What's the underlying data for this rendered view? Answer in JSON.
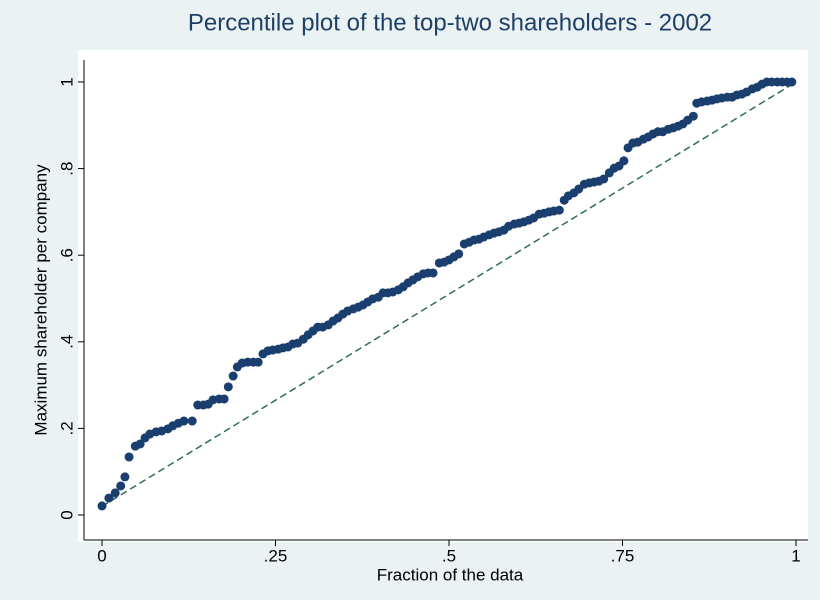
{
  "chart_data": {
    "type": "scatter",
    "title": "Percentile plot of the top-two shareholders - 2002",
    "x_label": "Fraction of the data",
    "y_label": "Maximum shareholder per company",
    "color": "#1a3f6e",
    "x": [
      0,
      0.01,
      0.019,
      0.027,
      0.033,
      0.039,
      0.048,
      0.055,
      0.062,
      0.069,
      0.078,
      0.086,
      0.095,
      0.102,
      0.11,
      0.118,
      0.13,
      0.138,
      0.146,
      0.153,
      0.16,
      0.169,
      0.176,
      0.182,
      0.189,
      0.195,
      0.202,
      0.21,
      0.218,
      0.225,
      0.232,
      0.239,
      0.246,
      0.254,
      0.261,
      0.268,
      0.275,
      0.282,
      0.29,
      0.297,
      0.304,
      0.311,
      0.318,
      0.326,
      0.333,
      0.34,
      0.347,
      0.354,
      0.362,
      0.369,
      0.376,
      0.383,
      0.39,
      0.398,
      0.405,
      0.412,
      0.419,
      0.427,
      0.434,
      0.441,
      0.448,
      0.455,
      0.463,
      0.47,
      0.477,
      0.486,
      0.493,
      0.5,
      0.507,
      0.514,
      0.522,
      0.529,
      0.536,
      0.543,
      0.55,
      0.558,
      0.565,
      0.572,
      0.579,
      0.586,
      0.594,
      0.601,
      0.608,
      0.615,
      0.622,
      0.63,
      0.637,
      0.644,
      0.651,
      0.659,
      0.666,
      0.672,
      0.68,
      0.687,
      0.695,
      0.702,
      0.709,
      0.716,
      0.723,
      0.731,
      0.738,
      0.745,
      0.752,
      0.758,
      0.765,
      0.772,
      0.78,
      0.787,
      0.794,
      0.801,
      0.808,
      0.816,
      0.823,
      0.83,
      0.837,
      0.844,
      0.852,
      0.857,
      0.864,
      0.872,
      0.879,
      0.886,
      0.893,
      0.901,
      0.908,
      0.915,
      0.922,
      0.929,
      0.937,
      0.944,
      0.951,
      0.958,
      0.965,
      0.973,
      0.98,
      0.987,
      0.994
    ],
    "values": [
      0.021,
      0.039,
      0.051,
      0.067,
      0.088,
      0.134,
      0.159,
      0.164,
      0.178,
      0.187,
      0.192,
      0.194,
      0.199,
      0.206,
      0.212,
      0.217,
      0.217,
      0.254,
      0.254,
      0.256,
      0.266,
      0.268,
      0.268,
      0.296,
      0.321,
      0.342,
      0.351,
      0.353,
      0.353,
      0.353,
      0.372,
      0.379,
      0.381,
      0.383,
      0.386,
      0.388,
      0.395,
      0.397,
      0.406,
      0.416,
      0.425,
      0.434,
      0.434,
      0.439,
      0.448,
      0.455,
      0.464,
      0.471,
      0.476,
      0.48,
      0.485,
      0.492,
      0.499,
      0.503,
      0.513,
      0.513,
      0.515,
      0.52,
      0.527,
      0.536,
      0.543,
      0.55,
      0.557,
      0.559,
      0.559,
      0.582,
      0.584,
      0.589,
      0.596,
      0.603,
      0.626,
      0.63,
      0.635,
      0.637,
      0.642,
      0.647,
      0.651,
      0.654,
      0.658,
      0.667,
      0.672,
      0.674,
      0.677,
      0.681,
      0.686,
      0.695,
      0.697,
      0.7,
      0.702,
      0.704,
      0.727,
      0.737,
      0.744,
      0.753,
      0.764,
      0.767,
      0.769,
      0.771,
      0.776,
      0.79,
      0.801,
      0.806,
      0.818,
      0.848,
      0.859,
      0.861,
      0.868,
      0.873,
      0.88,
      0.885,
      0.885,
      0.891,
      0.894,
      0.898,
      0.903,
      0.912,
      0.921,
      0.951,
      0.954,
      0.956,
      0.958,
      0.961,
      0.963,
      0.965,
      0.965,
      0.97,
      0.972,
      0.977,
      0.984,
      0.988,
      0.995,
      1,
      1,
      1,
      1,
      1,
      1
    ],
    "reference_line": {
      "x": [
        0,
        1
      ],
      "values": [
        0.02,
        1
      ],
      "color": "#2e6e5a"
    },
    "xlim": [
      0,
      1
    ],
    "ylim": [
      0,
      1
    ],
    "xticks": [
      0,
      {
        "value": 0.25,
        "label": ".25"
      },
      {
        "value": 0.5,
        "label": ".5"
      },
      {
        "value": 0.75,
        "label": ".75"
      },
      1
    ],
    "yticks": [
      0,
      {
        "value": 0.2,
        "label": ".2"
      },
      {
        "value": 0.4,
        "label": ".4"
      },
      {
        "value": 0.6,
        "label": ".6"
      },
      {
        "value": 0.8,
        "label": ".8"
      },
      1
    ],
    "grid": false
  }
}
